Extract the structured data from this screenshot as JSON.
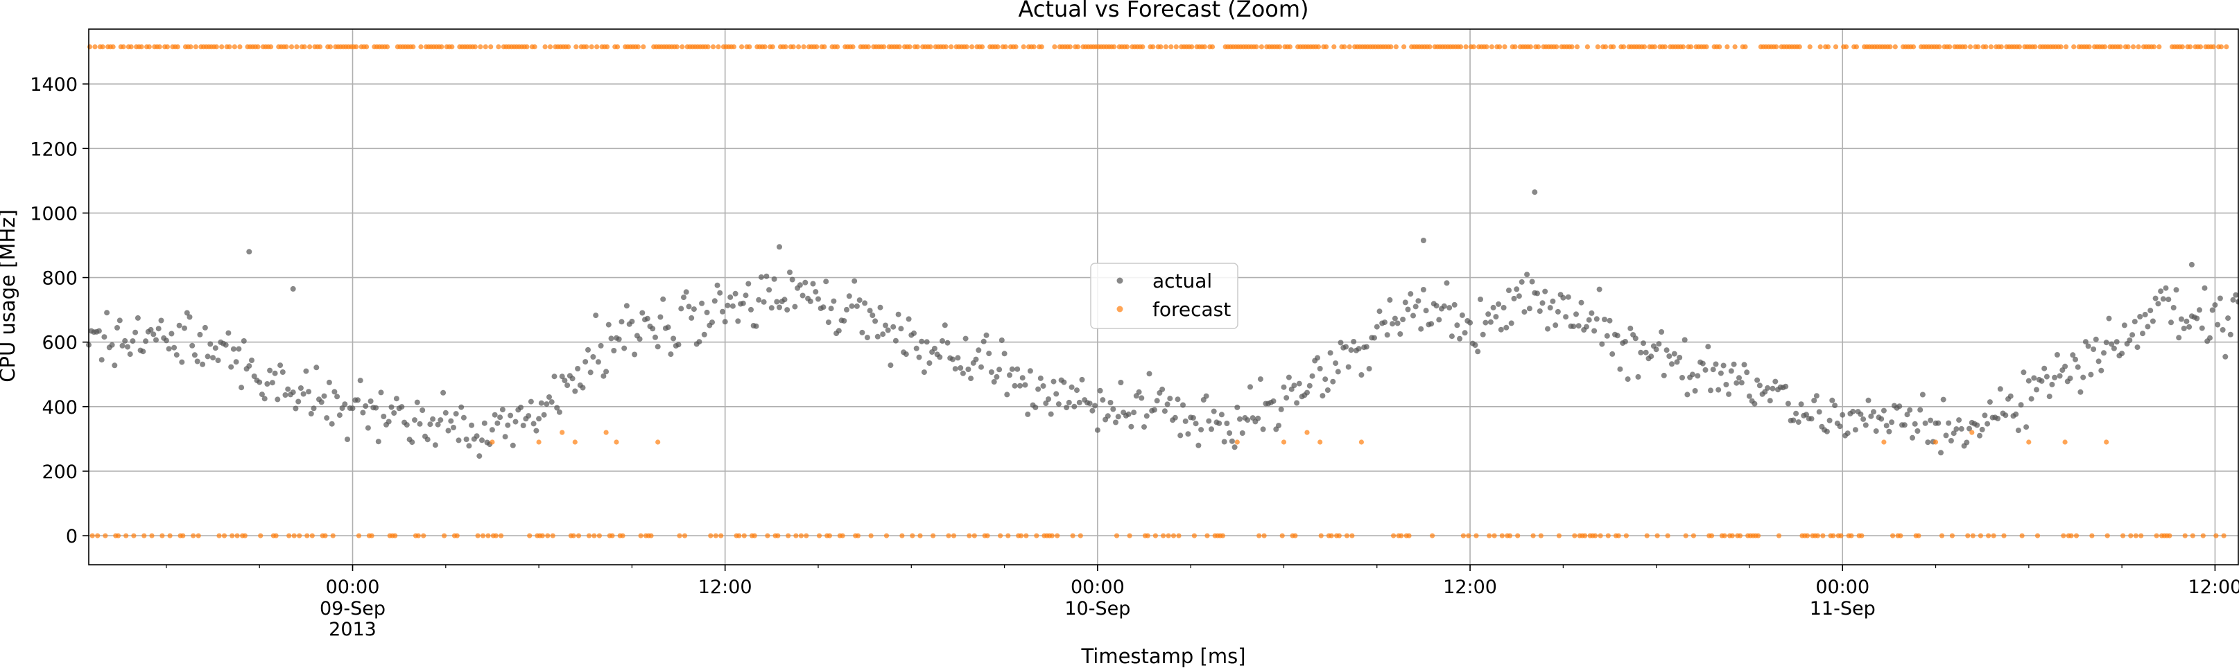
{
  "chart_data": {
    "type": "scatter",
    "title": "Actual vs Forecast (Zoom)",
    "xlabel": "Timestamp [ms]",
    "ylabel": "CPU usage [MHz]",
    "ylim": [
      -90,
      1570
    ],
    "xlim": [
      "2013-09-08 15:30",
      "2013-09-11 12:45"
    ],
    "y_ticks": [
      0,
      200,
      400,
      600,
      800,
      1000,
      1200,
      1400
    ],
    "y_tick_labels": [
      "0",
      "200",
      "400",
      "600",
      "800",
      "1000",
      "1200",
      "1400"
    ],
    "x_ticks": [
      {
        "t": "2013-09-09 00:00",
        "label": "00:00",
        "date": "09-Sep",
        "year": "2013",
        "major": true
      },
      {
        "t": "2013-09-09 12:00",
        "label": "12:00",
        "date": "",
        "year": "",
        "major": false
      },
      {
        "t": "2013-09-10 00:00",
        "label": "00:00",
        "date": "10-Sep",
        "year": "",
        "major": true
      },
      {
        "t": "2013-09-10 12:00",
        "label": "12:00",
        "date": "",
        "year": "",
        "major": false
      },
      {
        "t": "2013-09-11 00:00",
        "label": "00:00",
        "date": "11-Sep",
        "year": "",
        "major": true
      },
      {
        "t": "2013-09-11 12:00",
        "label": "12:00",
        "date": "",
        "year": "",
        "major": false
      }
    ],
    "grid": true,
    "legend_position": "center",
    "series": [
      {
        "name": "actual",
        "color": "#555555",
        "marker": "dot",
        "sample_interval_minutes": 5,
        "start": "2013-09-08 15:30",
        "trend_points": [
          {
            "t": "2013-09-08 15:30",
            "y": 610
          },
          {
            "t": "2013-09-08 18:00",
            "y": 640
          },
          {
            "t": "2013-09-08 20:00",
            "y": 560
          },
          {
            "t": "2013-09-08 22:00",
            "y": 450
          },
          {
            "t": "2013-09-09 00:00",
            "y": 400
          },
          {
            "t": "2013-09-09 02:00",
            "y": 350
          },
          {
            "t": "2013-09-09 04:00",
            "y": 330
          },
          {
            "t": "2013-09-09 06:00",
            "y": 370
          },
          {
            "t": "2013-09-09 08:00",
            "y": 580
          },
          {
            "t": "2013-09-09 10:00",
            "y": 650
          },
          {
            "t": "2013-09-09 12:00",
            "y": 700
          },
          {
            "t": "2013-09-09 14:00",
            "y": 760
          },
          {
            "t": "2013-09-09 16:00",
            "y": 690
          },
          {
            "t": "2013-09-09 18:00",
            "y": 590
          },
          {
            "t": "2013-09-09 20:00",
            "y": 550
          },
          {
            "t": "2013-09-09 22:00",
            "y": 450
          },
          {
            "t": "2013-09-10 00:00",
            "y": 410
          },
          {
            "t": "2013-09-10 02:00",
            "y": 410
          },
          {
            "t": "2013-09-10 04:00",
            "y": 330
          },
          {
            "t": "2013-09-10 06:00",
            "y": 420
          },
          {
            "t": "2013-09-10 08:00",
            "y": 560
          },
          {
            "t": "2013-09-10 10:00",
            "y": 700
          },
          {
            "t": "2013-09-10 12:00",
            "y": 650
          },
          {
            "t": "2013-09-10 14:00",
            "y": 720
          },
          {
            "t": "2013-09-10 16:00",
            "y": 650
          },
          {
            "t": "2013-09-10 18:00",
            "y": 560
          },
          {
            "t": "2013-09-10 20:00",
            "y": 500
          },
          {
            "t": "2013-09-10 22:00",
            "y": 420
          },
          {
            "t": "2013-09-11 00:00",
            "y": 340
          },
          {
            "t": "2013-09-11 02:00",
            "y": 360
          },
          {
            "t": "2013-09-11 04:00",
            "y": 310
          },
          {
            "t": "2013-09-11 06:00",
            "y": 430
          },
          {
            "t": "2013-09-11 08:00",
            "y": 560
          },
          {
            "t": "2013-09-11 10:00",
            "y": 700
          },
          {
            "t": "2013-09-11 12:00",
            "y": 650
          },
          {
            "t": "2013-09-11 12:45",
            "y": 700
          }
        ],
        "outliers": [
          {
            "t": "2013-09-08 20:40",
            "y": 880
          },
          {
            "t": "2013-09-08 22:05",
            "y": 765
          },
          {
            "t": "2013-09-09 13:45",
            "y": 895
          },
          {
            "t": "2013-09-10 10:30",
            "y": 915
          },
          {
            "t": "2013-09-10 14:05",
            "y": 1065
          },
          {
            "t": "2013-09-11 11:15",
            "y": 840
          }
        ]
      },
      {
        "name": "forecast",
        "color": "#ff7f0e",
        "marker": "dot",
        "sample_interval_minutes": 5,
        "levels": [
          1515,
          0
        ],
        "points": [
          {
            "t": "2013-09-09 04:30",
            "y": 290
          },
          {
            "t": "2013-09-09 06:00",
            "y": 290
          },
          {
            "t": "2013-09-09 06:45",
            "y": 320
          },
          {
            "t": "2013-09-09 07:10",
            "y": 290
          },
          {
            "t": "2013-09-09 08:10",
            "y": 320
          },
          {
            "t": "2013-09-09 08:30",
            "y": 290
          },
          {
            "t": "2013-09-09 09:50",
            "y": 290
          },
          {
            "t": "2013-09-10 04:30",
            "y": 290
          },
          {
            "t": "2013-09-10 06:00",
            "y": 290
          },
          {
            "t": "2013-09-10 06:45",
            "y": 320
          },
          {
            "t": "2013-09-10 07:10",
            "y": 290
          },
          {
            "t": "2013-09-10 08:30",
            "y": 290
          },
          {
            "t": "2013-09-11 01:20",
            "y": 290
          },
          {
            "t": "2013-09-11 03:00",
            "y": 290
          },
          {
            "t": "2013-09-11 04:10",
            "y": 320
          },
          {
            "t": "2013-09-11 06:00",
            "y": 290
          },
          {
            "t": "2013-09-11 07:10",
            "y": 290
          },
          {
            "t": "2013-09-11 08:30",
            "y": 290
          }
        ]
      }
    ]
  }
}
